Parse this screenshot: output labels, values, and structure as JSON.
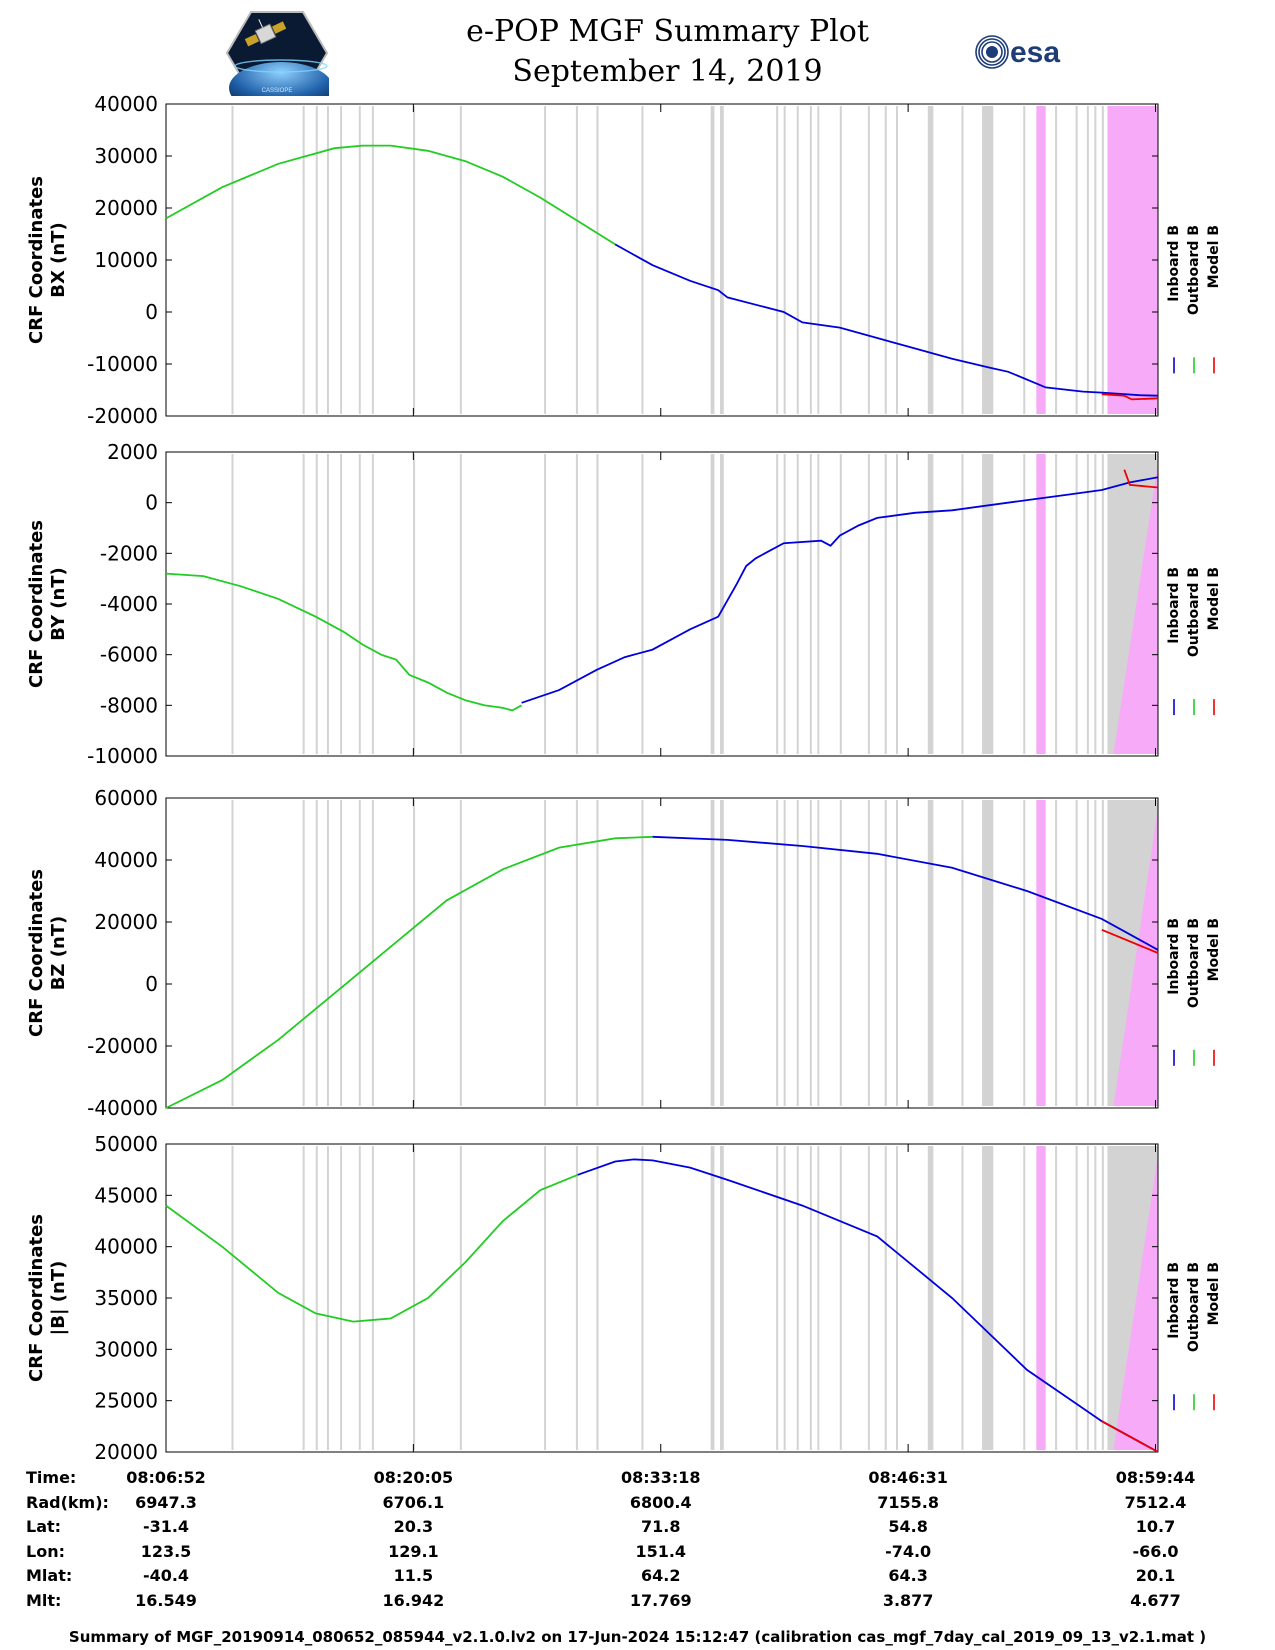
{
  "header": {
    "title": "e-POP MGF Summary Plot",
    "date": "September 14, 2019",
    "logo_left": "CASSIOPE",
    "logo_right": "esa"
  },
  "colors": {
    "inboard": "#0000dd",
    "outboard": "#22cc22",
    "model": "#ee0000",
    "gap_gray": "#d3d3d3",
    "gap_magenta": "#f7aaf7"
  },
  "chart_data": [
    {
      "type": "line",
      "ylabel_line1": "CRF Coordinates",
      "ylabel_line2": "BX (nT)",
      "ylim": [
        -20000,
        40000
      ],
      "yticks": [
        -20000,
        -10000,
        0,
        10000,
        20000,
        30000,
        40000
      ],
      "xlim_minutes": [
        0,
        53
      ],
      "series": [
        {
          "name": "Outboard B",
          "x": [
            0,
            3,
            6,
            9,
            10.5,
            12,
            14,
            16,
            18,
            20,
            22,
            24
          ],
          "y": [
            18000,
            24000,
            28500,
            31500,
            32000,
            32000,
            31000,
            29000,
            26000,
            22000,
            17500,
            13000
          ]
        },
        {
          "name": "Inboard B",
          "x": [
            24,
            26,
            28,
            29.5,
            30,
            33,
            34,
            36,
            38,
            40,
            42,
            44,
            45,
            47,
            49,
            50,
            52,
            53
          ],
          "y": [
            13000,
            9000,
            6000,
            4200,
            2800,
            0,
            -2000,
            -3000,
            -5000,
            -7000,
            -9000,
            -10700,
            -11500,
            -14500,
            -15300,
            -15500,
            -16000,
            -16100
          ]
        },
        {
          "name": "Model B",
          "x": [
            50,
            51.2,
            51.6,
            53
          ],
          "y": [
            -15800,
            -16100,
            -16800,
            -16600
          ]
        }
      ],
      "legend": [
        "Inboard B",
        "Outboard B",
        "Model B"
      ]
    },
    {
      "type": "line",
      "ylabel_line1": "CRF Coordinates",
      "ylabel_line2": "BY (nT)",
      "ylim": [
        -10000,
        2000
      ],
      "yticks": [
        -10000,
        -8000,
        -6000,
        -4000,
        -2000,
        0,
        2000
      ],
      "xlim_minutes": [
        0,
        53
      ],
      "series": [
        {
          "name": "Outboard B",
          "x": [
            0,
            2,
            4,
            6,
            8,
            9.5,
            10.5,
            11.5,
            12.3,
            13,
            14,
            15,
            16,
            17,
            18,
            18.5,
            19
          ],
          "y": [
            -2800,
            -2900,
            -3300,
            -3800,
            -4500,
            -5100,
            -5600,
            -6000,
            -6200,
            -6800,
            -7100,
            -7500,
            -7800,
            -8000,
            -8100,
            -8200,
            -8000
          ]
        },
        {
          "name": "Inboard B",
          "x": [
            19,
            21,
            23,
            24.5,
            26,
            28,
            29.5,
            30.5,
            31,
            31.5,
            32,
            33,
            35,
            35.5,
            36,
            37,
            38,
            40,
            42,
            44,
            46,
            48,
            50,
            51.5,
            53
          ],
          "y": [
            -7900,
            -7400,
            -6600,
            -6100,
            -5800,
            -5000,
            -4500,
            -3200,
            -2500,
            -2200,
            -2000,
            -1600,
            -1500,
            -1700,
            -1300,
            -900,
            -600,
            -400,
            -300,
            -100,
            100,
            300,
            500,
            800,
            1000
          ]
        },
        {
          "name": "Model B",
          "x": [
            51.2,
            51.5,
            53
          ],
          "y": [
            1300,
            700,
            600
          ]
        }
      ],
      "legend": [
        "Inboard B",
        "Outboard B",
        "Model B"
      ]
    },
    {
      "type": "line",
      "ylabel_line1": "CRF Coordinates",
      "ylabel_line2": "BZ (nT)",
      "ylim": [
        -40000,
        60000
      ],
      "yticks": [
        -40000,
        -20000,
        0,
        20000,
        40000,
        60000
      ],
      "xlim_minutes": [
        0,
        53
      ],
      "series": [
        {
          "name": "Outboard B",
          "x": [
            0,
            3,
            6,
            9,
            12,
            15,
            18,
            21,
            24,
            26
          ],
          "y": [
            -40000,
            -31000,
            -18000,
            -3000,
            12000,
            27000,
            37000,
            44000,
            47000,
            47500
          ]
        },
        {
          "name": "Inboard B",
          "x": [
            26,
            30,
            34,
            38,
            42,
            46,
            50,
            53
          ],
          "y": [
            47500,
            46500,
            44500,
            42000,
            37500,
            30000,
            21000,
            11000
          ]
        },
        {
          "name": "Model B",
          "x": [
            50,
            53
          ],
          "y": [
            17500,
            10000
          ]
        }
      ],
      "legend": [
        "Inboard B",
        "Outboard B",
        "Model B"
      ]
    },
    {
      "type": "line",
      "ylabel_line1": "CRF Coordinates",
      "ylabel_line2": "|B| (nT)",
      "ylim": [
        20000,
        50000
      ],
      "yticks": [
        20000,
        25000,
        30000,
        35000,
        40000,
        45000,
        50000
      ],
      "xlim_minutes": [
        0,
        53
      ],
      "series": [
        {
          "name": "Outboard B",
          "x": [
            0,
            3,
            6,
            8,
            10,
            12,
            14,
            16,
            18,
            20,
            22
          ],
          "y": [
            44000,
            40000,
            35500,
            33500,
            32700,
            33000,
            35000,
            38500,
            42500,
            45500,
            47000
          ]
        },
        {
          "name": "Inboard B",
          "x": [
            22,
            24,
            25,
            26,
            28,
            30,
            34,
            38,
            42,
            46,
            50,
            53
          ],
          "y": [
            47000,
            48300,
            48500,
            48400,
            47700,
            46500,
            44000,
            41000,
            35000,
            28000,
            23000,
            20000
          ]
        },
        {
          "name": "Model B",
          "x": [
            50,
            53
          ],
          "y": [
            23000,
            20000
          ]
        }
      ],
      "legend": [
        "Inboard B",
        "Outboard B",
        "Model B"
      ]
    }
  ],
  "gaps_minutes": {
    "gray": [
      [
        3.5,
        3.6
      ],
      [
        7.3,
        7.4
      ],
      [
        8.0,
        8.1
      ],
      [
        8.6,
        8.7
      ],
      [
        9.3,
        9.4
      ],
      [
        10.3,
        10.4
      ],
      [
        11.0,
        11.1
      ],
      [
        13.2,
        13.3
      ],
      [
        15.7,
        15.8
      ],
      [
        20.2,
        20.3
      ],
      [
        21.9,
        22.0
      ],
      [
        23.0,
        23.1
      ],
      [
        25.4,
        25.5
      ],
      [
        29.1,
        29.3
      ],
      [
        29.6,
        29.8
      ],
      [
        32.6,
        32.7
      ],
      [
        33.0,
        33.1
      ],
      [
        33.7,
        33.8
      ],
      [
        34.4,
        34.5
      ],
      [
        34.8,
        34.9
      ],
      [
        36.0,
        36.1
      ],
      [
        37.5,
        37.6
      ],
      [
        38.4,
        38.5
      ],
      [
        39.0,
        39.1
      ],
      [
        40.7,
        41.0
      ],
      [
        42.5,
        42.6
      ],
      [
        43.6,
        44.2
      ],
      [
        45.8,
        45.9
      ],
      [
        47.5,
        47.6
      ],
      [
        48.6,
        48.7
      ],
      [
        49.2,
        49.3
      ],
      [
        49.6,
        49.7
      ],
      [
        50.0,
        50.1
      ]
    ],
    "magenta": [
      [
        46.5,
        47.0
      ],
      [
        50.3,
        53.0
      ]
    ]
  },
  "x_axis": {
    "tick_labels": [
      "08:06:52",
      "08:20:05",
      "08:33:18",
      "08:46:31",
      "08:59:44"
    ],
    "tick_minutes": [
      0,
      13.2167,
      26.4333,
      39.65,
      52.8667
    ]
  },
  "ephemeris": {
    "labels": [
      "Time:",
      "Rad(km):",
      "Lat:",
      "Lon:",
      "Mlat:",
      "Mlt:"
    ],
    "rows": [
      [
        "08:06:52",
        "08:20:05",
        "08:33:18",
        "08:46:31",
        "08:59:44"
      ],
      [
        "6947.3",
        "6706.1",
        "6800.4",
        "7155.8",
        "7512.4"
      ],
      [
        "-31.4",
        "20.3",
        "71.8",
        "54.8",
        "10.7"
      ],
      [
        "123.5",
        "129.1",
        "151.4",
        "-74.0",
        "-66.0"
      ],
      [
        "-40.4",
        "11.5",
        "64.2",
        "64.3",
        "20.1"
      ],
      [
        "16.549",
        "16.942",
        "17.769",
        "3.877",
        "4.677"
      ]
    ]
  },
  "footer": "Summary of MGF_20190914_080652_085944_v2.1.0.lv2 on 17-Jun-2024 15:12:47 (calibration cas_mgf_7day_cal_2019_09_13_v2.1.mat )"
}
